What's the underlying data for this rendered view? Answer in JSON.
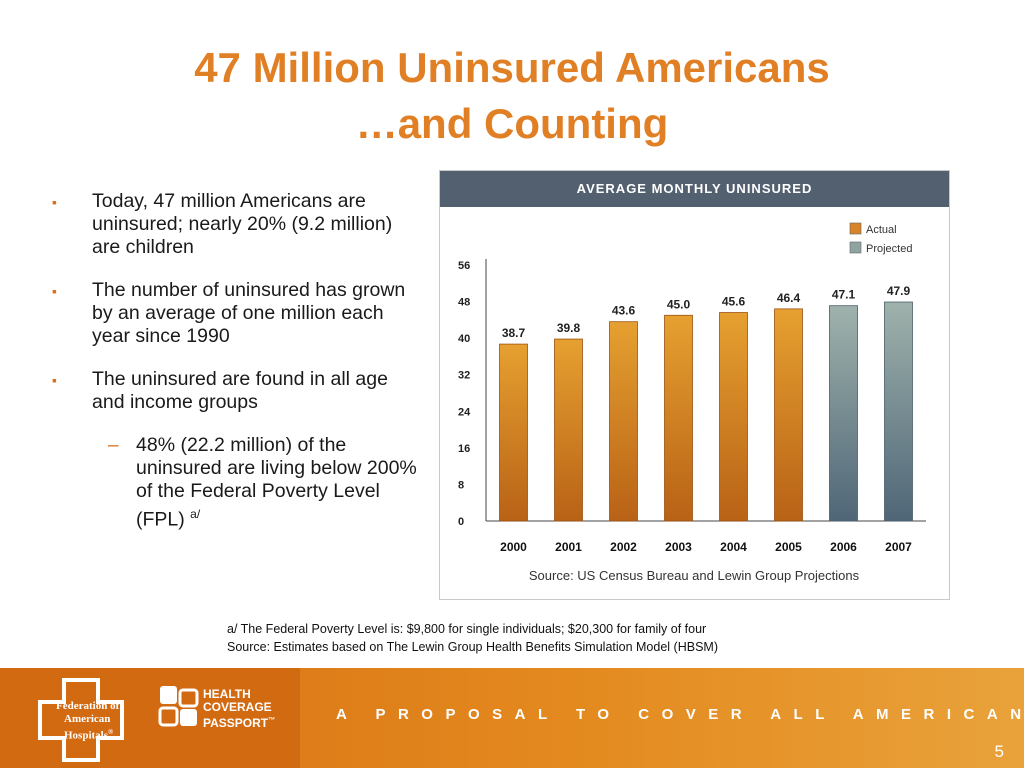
{
  "title": {
    "line1": "47 Million Uninsured Americans",
    "line2": "…and Counting"
  },
  "bullets": [
    {
      "text": "Today, 47 million Americans are uninsured; nearly 20% (9.2 million) are children"
    },
    {
      "text": "The number of uninsured has grown by an average of one million each year since 1990"
    },
    {
      "text": "The uninsured are found in all age and income groups"
    }
  ],
  "sub_bullet": {
    "text": "48% (22.2 million) of the uninsured are living below 200% of the Federal Poverty Level (FPL)",
    "superscript": "a/"
  },
  "chart_data": {
    "type": "bar",
    "title": "AVERAGE MONTHLY UNINSURED",
    "categories": [
      "2000",
      "2001",
      "2002",
      "2003",
      "2004",
      "2005",
      "2006",
      "2007"
    ],
    "values": [
      38.7,
      39.8,
      43.6,
      45.0,
      45.6,
      46.4,
      47.1,
      47.9
    ],
    "value_labels": [
      "38.7",
      "39.8",
      "43.6",
      "45.0",
      "45.6",
      "46.4",
      "47.1",
      "47.9"
    ],
    "bar_kind": [
      "Actual",
      "Actual",
      "Actual",
      "Actual",
      "Actual",
      "Actual",
      "Projected",
      "Projected"
    ],
    "legend": [
      {
        "name": "Actual",
        "color": "#d98427"
      },
      {
        "name": "Projected",
        "color": "#8fa3a0"
      }
    ],
    "legend_position": "top-right",
    "yticks": [
      "0",
      "8",
      "16",
      "24",
      "32",
      "40",
      "48",
      "56"
    ],
    "ylim": [
      0,
      56
    ],
    "grid": false,
    "source": "Source: US Census Bureau and Lewin Group Projections"
  },
  "footnotes": {
    "line1": "a/ The Federal Poverty Level is: $9,800 for single individuals; $20,300 for family of four",
    "line2": "Source: Estimates based on The Lewin Group Health Benefits Simulation Model (HBSM)"
  },
  "footer": {
    "org_line1": "Federation of",
    "org_line2": "American",
    "org_line3": "Hospitals",
    "org_mark": "®",
    "brand_line1": "HEALTH",
    "brand_line2": "COVERAGE",
    "brand_line3": "PASSPORT",
    "brand_mark": "™",
    "tagline": "A PROPOSAL TO COVER ALL AMERICANS",
    "page_number": "5"
  },
  "colors": {
    "title": "#e07f24",
    "actual": "#d98427",
    "projected": "#8fa3a0",
    "header": "#536070",
    "footer": "#e08620"
  }
}
